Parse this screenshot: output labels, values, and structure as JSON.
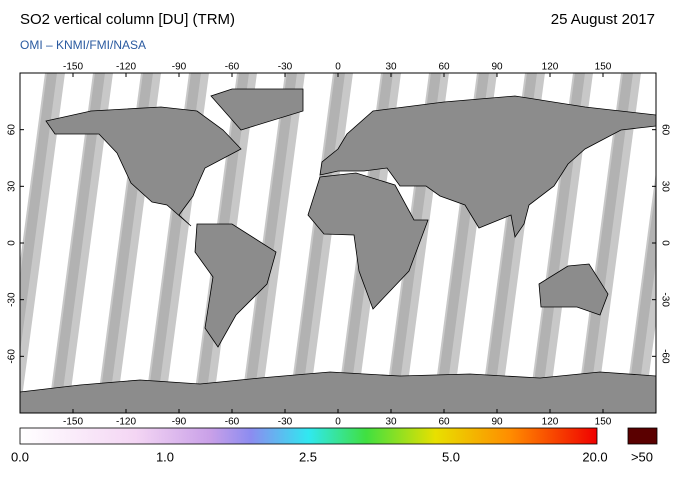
{
  "header": {
    "title": "SO2 vertical column [DU] (TRM)",
    "date": "25 August 2017",
    "subtitle": "OMI  –  KNMI/FMI/NASA"
  },
  "map": {
    "longitude_ticks": [
      -150,
      -120,
      -90,
      -60,
      -30,
      0,
      30,
      60,
      90,
      120,
      150
    ],
    "latitude_ticks": [
      60,
      30,
      0,
      -30,
      -60
    ]
  },
  "colorbar": {
    "labels": [
      "0.0",
      "1.0",
      "2.5",
      "5.0",
      "20.0"
    ],
    "overflow_label": ">50"
  }
}
